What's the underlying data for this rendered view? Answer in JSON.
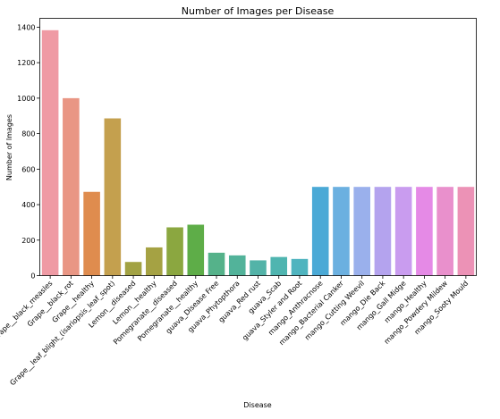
{
  "chart_data": {
    "type": "bar",
    "title": "Number of Images per Disease",
    "xlabel": "Disease",
    "ylabel": "Number of Images",
    "ylim": [
      0,
      1450
    ],
    "yticks": [
      0,
      200,
      400,
      600,
      800,
      1000,
      1200,
      1400
    ],
    "grid": false,
    "categories": [
      "Grape__black_measles",
      "Grape__black_rot",
      "Grape__healthy",
      "Grape__leaf_blight_(isariopsis_leaf_spot)",
      "Lemon__diseased",
      "Lemon__healthy",
      "Pomegranate__diseased",
      "Pomegranate__healthy",
      "guava_Disease Free",
      "guava_Phytopthora",
      "guava_Red rust",
      "guava_Scab",
      "guava_Styler and Root",
      "mango_Anthracnose",
      "mango_Bacterial Canker",
      "mango_Cutting Weevil",
      "mango_Die Back",
      "mango_Gall Midge",
      "mango_Healthy",
      "mango_Powdery Mildew",
      "mango_Sooty Mould"
    ],
    "values": [
      1383,
      1000,
      472,
      886,
      77,
      159,
      272,
      287,
      129,
      114,
      86,
      105,
      94,
      500,
      500,
      500,
      500,
      500,
      500,
      500,
      500
    ],
    "colors": [
      "#ef9aa4",
      "#e99684",
      "#df8c4e",
      "#c4a04e",
      "#a2a243",
      "#a5a243",
      "#8ba740",
      "#5ead48",
      "#55b28a",
      "#52b39a",
      "#53b3a8",
      "#4fb5b0",
      "#4fb4bf",
      "#4aa9d6",
      "#6bb0e0",
      "#9ab0ec",
      "#b4a3ee",
      "#c99cef",
      "#e58ae6",
      "#e990cc",
      "#ec92b6"
    ]
  }
}
